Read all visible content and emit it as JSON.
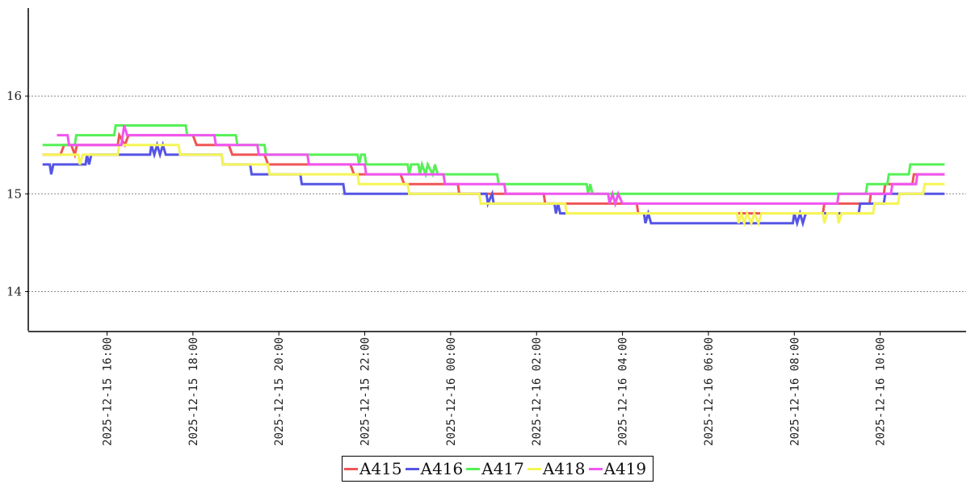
{
  "chart_data": {
    "type": "line",
    "title": "",
    "xlabel": "",
    "ylabel": "",
    "ylim": [
      13.6,
      16.9
    ],
    "xlim": [
      "2025-12-15 14:10",
      "2025-12-16 12:00"
    ],
    "y_ticks": [
      "14",
      "15",
      "16"
    ],
    "x_ticks": [
      "2025-12-15 16:00",
      "2025-12-15 18:00",
      "2025-12-15 20:00",
      "2025-12-15 22:00",
      "2025-12-16 00:00",
      "2025-12-16 02:00",
      "2025-12-16 04:00",
      "2025-12-16 06:00",
      "2025-12-16 08:00",
      "2025-12-16 10:00"
    ],
    "grid": "horizontal dotted",
    "legend_position": "bottom-center",
    "series": [
      {
        "name": "A415",
        "color": "#f05555",
        "points": [
          [
            "2025-12-15 14:30",
            15.4
          ],
          [
            "2025-12-15 14:55",
            15.4
          ],
          [
            "2025-12-15 15:00",
            15.5
          ],
          [
            "2025-12-15 15:10",
            15.5
          ],
          [
            "2025-12-15 15:15",
            15.4
          ],
          [
            "2025-12-15 15:18",
            15.5
          ],
          [
            "2025-12-15 16:15",
            15.5
          ],
          [
            "2025-12-15 16:17",
            15.6
          ],
          [
            "2025-12-15 16:25",
            15.5
          ],
          [
            "2025-12-15 16:30",
            15.6
          ],
          [
            "2025-12-15 18:00",
            15.6
          ],
          [
            "2025-12-15 18:05",
            15.5
          ],
          [
            "2025-12-15 18:50",
            15.5
          ],
          [
            "2025-12-15 18:55",
            15.4
          ],
          [
            "2025-12-15 19:40",
            15.4
          ],
          [
            "2025-12-15 19:45",
            15.3
          ],
          [
            "2025-12-15 21:40",
            15.3
          ],
          [
            "2025-12-15 21:45",
            15.2
          ],
          [
            "2025-12-15 22:50",
            15.2
          ],
          [
            "2025-12-15 22:55",
            15.1
          ],
          [
            "2025-12-16 00:10",
            15.1
          ],
          [
            "2025-12-16 00:12",
            15.0
          ],
          [
            "2025-12-16 02:10",
            15.0
          ],
          [
            "2025-12-16 02:12",
            14.9
          ],
          [
            "2025-12-16 04:20",
            14.9
          ],
          [
            "2025-12-16 04:22",
            14.8
          ],
          [
            "2025-12-16 08:40",
            14.8
          ],
          [
            "2025-12-16 08:42",
            14.9
          ],
          [
            "2025-12-16 09:45",
            14.9
          ],
          [
            "2025-12-16 09:47",
            15.0
          ],
          [
            "2025-12-16 10:05",
            15.0
          ],
          [
            "2025-12-16 10:07",
            15.1
          ],
          [
            "2025-12-16 10:45",
            15.1
          ],
          [
            "2025-12-16 10:47",
            15.2
          ],
          [
            "2025-12-16 11:30",
            15.2
          ]
        ]
      },
      {
        "name": "A416",
        "color": "#5555e6",
        "points": [
          [
            "2025-12-15 14:30",
            15.3
          ],
          [
            "2025-12-15 14:40",
            15.3
          ],
          [
            "2025-12-15 14:42",
            15.2
          ],
          [
            "2025-12-15 14:45",
            15.3
          ],
          [
            "2025-12-15 15:30",
            15.3
          ],
          [
            "2025-12-15 15:32",
            15.4
          ],
          [
            "2025-12-15 15:35",
            15.3
          ],
          [
            "2025-12-15 15:38",
            15.4
          ],
          [
            "2025-12-15 17:00",
            15.4
          ],
          [
            "2025-12-15 17:02",
            15.5
          ],
          [
            "2025-12-15 17:06",
            15.4
          ],
          [
            "2025-12-15 17:10",
            15.5
          ],
          [
            "2025-12-15 17:14",
            15.4
          ],
          [
            "2025-12-15 17:18",
            15.5
          ],
          [
            "2025-12-15 17:22",
            15.4
          ],
          [
            "2025-12-15 18:40",
            15.4
          ],
          [
            "2025-12-15 18:42",
            15.3
          ],
          [
            "2025-12-15 19:20",
            15.3
          ],
          [
            "2025-12-15 19:22",
            15.2
          ],
          [
            "2025-12-15 20:30",
            15.2
          ],
          [
            "2025-12-15 20:32",
            15.1
          ],
          [
            "2025-12-15 21:30",
            15.1
          ],
          [
            "2025-12-15 21:32",
            15.0
          ],
          [
            "2025-12-16 00:50",
            15.0
          ],
          [
            "2025-12-16 00:52",
            14.9
          ],
          [
            "2025-12-16 00:58",
            15.0
          ],
          [
            "2025-12-16 01:00",
            14.9
          ],
          [
            "2025-12-16 02:25",
            14.9
          ],
          [
            "2025-12-16 02:27",
            14.8
          ],
          [
            "2025-12-16 02:30",
            14.9
          ],
          [
            "2025-12-16 02:33",
            14.8
          ],
          [
            "2025-12-16 04:30",
            14.8
          ],
          [
            "2025-12-16 04:32",
            14.7
          ],
          [
            "2025-12-16 04:36",
            14.8
          ],
          [
            "2025-12-16 04:40",
            14.7
          ],
          [
            "2025-12-16 07:58",
            14.7
          ],
          [
            "2025-12-16 08:00",
            14.8
          ],
          [
            "2025-12-16 08:04",
            14.7
          ],
          [
            "2025-12-16 08:08",
            14.8
          ],
          [
            "2025-12-16 08:12",
            14.7
          ],
          [
            "2025-12-16 08:16",
            14.8
          ],
          [
            "2025-12-16 09:30",
            14.8
          ],
          [
            "2025-12-16 09:32",
            14.9
          ],
          [
            "2025-12-16 10:05",
            14.9
          ],
          [
            "2025-12-16 10:07",
            15.0
          ],
          [
            "2025-12-16 11:30",
            15.0
          ]
        ]
      },
      {
        "name": "A417",
        "color": "#55f055",
        "points": [
          [
            "2025-12-15 14:30",
            15.5
          ],
          [
            "2025-12-15 15:15",
            15.5
          ],
          [
            "2025-12-15 15:17",
            15.6
          ],
          [
            "2025-12-15 16:10",
            15.6
          ],
          [
            "2025-12-15 16:12",
            15.7
          ],
          [
            "2025-12-15 17:50",
            15.7
          ],
          [
            "2025-12-15 17:52",
            15.6
          ],
          [
            "2025-12-15 19:00",
            15.6
          ],
          [
            "2025-12-15 19:02",
            15.5
          ],
          [
            "2025-12-15 19:40",
            15.5
          ],
          [
            "2025-12-15 19:42",
            15.4
          ],
          [
            "2025-12-15 21:50",
            15.4
          ],
          [
            "2025-12-15 21:52",
            15.3
          ],
          [
            "2025-12-15 21:55",
            15.4
          ],
          [
            "2025-12-15 22:00",
            15.4
          ],
          [
            "2025-12-15 22:02",
            15.3
          ],
          [
            "2025-12-15 23:00",
            15.3
          ],
          [
            "2025-12-15 23:02",
            15.2
          ],
          [
            "2025-12-15 23:05",
            15.3
          ],
          [
            "2025-12-15 23:15",
            15.3
          ],
          [
            "2025-12-15 23:17",
            15.2
          ],
          [
            "2025-12-15 23:20",
            15.3
          ],
          [
            "2025-12-15 23:25",
            15.2
          ],
          [
            "2025-12-15 23:28",
            15.3
          ],
          [
            "2025-12-15 23:35",
            15.2
          ],
          [
            "2025-12-15 23:38",
            15.3
          ],
          [
            "2025-12-15 23:42",
            15.2
          ],
          [
            "2025-12-16 01:05",
            15.2
          ],
          [
            "2025-12-16 01:07",
            15.1
          ],
          [
            "2025-12-16 03:10",
            15.1
          ],
          [
            "2025-12-16 03:12",
            15.0
          ],
          [
            "2025-12-16 03:15",
            15.1
          ],
          [
            "2025-12-16 03:18",
            15.0
          ],
          [
            "2025-12-16 09:40",
            15.0
          ],
          [
            "2025-12-16 09:42",
            15.1
          ],
          [
            "2025-12-16 10:10",
            15.1
          ],
          [
            "2025-12-16 10:12",
            15.2
          ],
          [
            "2025-12-16 10:40",
            15.2
          ],
          [
            "2025-12-16 10:42",
            15.3
          ],
          [
            "2025-12-16 11:30",
            15.3
          ]
        ]
      },
      {
        "name": "A418",
        "color": "#f5f555",
        "points": [
          [
            "2025-12-15 14:30",
            15.4
          ],
          [
            "2025-12-15 15:20",
            15.4
          ],
          [
            "2025-12-15 15:22",
            15.3
          ],
          [
            "2025-12-15 15:26",
            15.4
          ],
          [
            "2025-12-15 16:15",
            15.4
          ],
          [
            "2025-12-15 16:17",
            15.5
          ],
          [
            "2025-12-15 17:40",
            15.5
          ],
          [
            "2025-12-15 17:42",
            15.4
          ],
          [
            "2025-12-15 18:40",
            15.4
          ],
          [
            "2025-12-15 18:42",
            15.3
          ],
          [
            "2025-12-15 19:45",
            15.3
          ],
          [
            "2025-12-15 19:47",
            15.2
          ],
          [
            "2025-12-15 21:50",
            15.2
          ],
          [
            "2025-12-15 21:52",
            15.1
          ],
          [
            "2025-12-15 23:00",
            15.1
          ],
          [
            "2025-12-15 23:02",
            15.0
          ],
          [
            "2025-12-16 00:40",
            15.0
          ],
          [
            "2025-12-16 00:42",
            14.9
          ],
          [
            "2025-12-16 02:40",
            14.9
          ],
          [
            "2025-12-16 02:42",
            14.8
          ],
          [
            "2025-12-16 06:40",
            14.8
          ],
          [
            "2025-12-16 06:42",
            14.7
          ],
          [
            "2025-12-16 06:46",
            14.8
          ],
          [
            "2025-12-16 06:50",
            14.7
          ],
          [
            "2025-12-16 06:54",
            14.8
          ],
          [
            "2025-12-16 07:00",
            14.7
          ],
          [
            "2025-12-16 07:04",
            14.8
          ],
          [
            "2025-12-16 07:10",
            14.7
          ],
          [
            "2025-12-16 07:14",
            14.8
          ],
          [
            "2025-12-16 08:40",
            14.8
          ],
          [
            "2025-12-16 08:42",
            14.7
          ],
          [
            "2025-12-16 08:46",
            14.8
          ],
          [
            "2025-12-16 09:00",
            14.8
          ],
          [
            "2025-12-16 09:02",
            14.7
          ],
          [
            "2025-12-16 09:06",
            14.8
          ],
          [
            "2025-12-16 09:50",
            14.8
          ],
          [
            "2025-12-16 09:52",
            14.9
          ],
          [
            "2025-12-16 10:25",
            14.9
          ],
          [
            "2025-12-16 10:27",
            15.0
          ],
          [
            "2025-12-16 11:00",
            15.0
          ],
          [
            "2025-12-16 11:02",
            15.1
          ],
          [
            "2025-12-16 11:30",
            15.1
          ]
        ]
      },
      {
        "name": "A419",
        "color": "#f055f0",
        "points": [
          [
            "2025-12-15 14:50",
            15.6
          ],
          [
            "2025-12-15 15:05",
            15.6
          ],
          [
            "2025-12-15 15:07",
            15.5
          ],
          [
            "2025-12-15 16:20",
            15.5
          ],
          [
            "2025-12-15 16:22",
            15.6
          ],
          [
            "2025-12-15 16:24",
            15.7
          ],
          [
            "2025-12-15 16:28",
            15.6
          ],
          [
            "2025-12-15 18:30",
            15.6
          ],
          [
            "2025-12-15 18:32",
            15.5
          ],
          [
            "2025-12-15 19:30",
            15.5
          ],
          [
            "2025-12-15 19:32",
            15.4
          ],
          [
            "2025-12-15 20:40",
            15.4
          ],
          [
            "2025-12-15 20:42",
            15.3
          ],
          [
            "2025-12-15 22:00",
            15.3
          ],
          [
            "2025-12-15 22:02",
            15.2
          ],
          [
            "2025-12-15 23:50",
            15.2
          ],
          [
            "2025-12-15 23:52",
            15.1
          ],
          [
            "2025-12-16 01:15",
            15.1
          ],
          [
            "2025-12-16 01:17",
            15.0
          ],
          [
            "2025-12-16 03:40",
            15.0
          ],
          [
            "2025-12-16 03:42",
            14.9
          ],
          [
            "2025-12-16 03:46",
            15.0
          ],
          [
            "2025-12-16 03:50",
            14.9
          ],
          [
            "2025-12-16 03:54",
            15.0
          ],
          [
            "2025-12-16 04:00",
            14.9
          ],
          [
            "2025-12-16 09:00",
            14.9
          ],
          [
            "2025-12-16 09:02",
            15.0
          ],
          [
            "2025-12-16 10:15",
            15.0
          ],
          [
            "2025-12-16 10:17",
            15.1
          ],
          [
            "2025-12-16 10:50",
            15.1
          ],
          [
            "2025-12-16 10:52",
            15.2
          ],
          [
            "2025-12-16 11:30",
            15.2
          ]
        ]
      }
    ]
  }
}
